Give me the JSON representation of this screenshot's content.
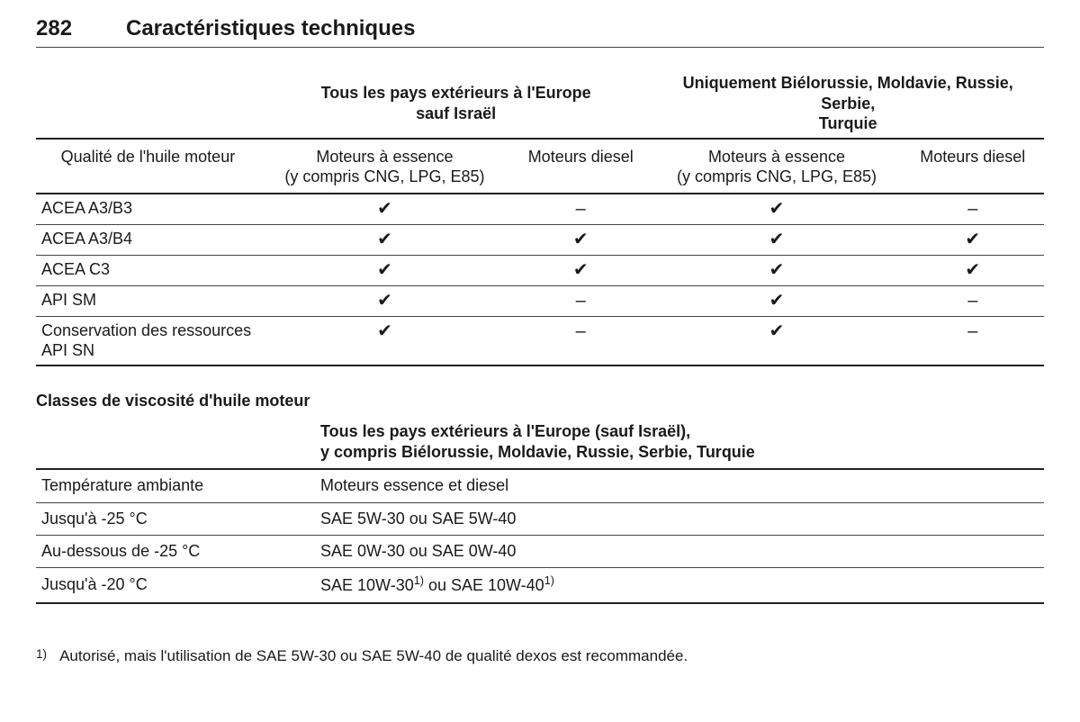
{
  "page": {
    "number": "282",
    "chapter": "Caractéristiques techniques"
  },
  "check": "✔",
  "dash": "–",
  "table1": {
    "group1_title_l1": "Tous les pays extérieurs à l'Europe",
    "group1_title_l2": "sauf Israël",
    "group2_title_l1": "Uniquement Biélorussie, Moldavie, Russie, Serbie,",
    "group2_title_l2": "Turquie",
    "quality_label": "Qualité de l'huile moteur",
    "petrol_l1": "Moteurs à essence",
    "petrol_l2": "(y compris CNG, LPG, E85)",
    "diesel": "Moteurs diesel",
    "rows": [
      {
        "label": "ACEA A3/B3",
        "g1p": "✔",
        "g1d": "–",
        "g2p": "✔",
        "g2d": "–"
      },
      {
        "label": "ACEA A3/B4",
        "g1p": "✔",
        "g1d": "✔",
        "g2p": "✔",
        "g2d": "✔"
      },
      {
        "label": "ACEA C3",
        "g1p": "✔",
        "g1d": "✔",
        "g2p": "✔",
        "g2d": "✔"
      },
      {
        "label": "API SM",
        "g1p": "✔",
        "g1d": "–",
        "g2p": "✔",
        "g2d": "–"
      },
      {
        "label": "Conservation des ressources API SN",
        "g1p": "✔",
        "g1d": "–",
        "g2p": "✔",
        "g2d": "–"
      }
    ]
  },
  "table2": {
    "section_title": "Classes de viscosité d'huile moteur",
    "group_title_l1": "Tous les pays extérieurs à l'Europe (sauf Israël),",
    "group_title_l2": "y compris Biélorussie, Moldavie, Russie, Serbie, Turquie",
    "row_label": "Température ambiante",
    "col_label": "Moteurs essence et diesel",
    "rows": [
      {
        "label": "Jusqu'à -25 °C",
        "value_plain": "SAE 5W-30 ou SAE 5W-40"
      },
      {
        "label": "Au-dessous de -25 °C",
        "value_plain": "SAE 0W-30 ou SAE 0W-40"
      },
      {
        "label": "Jusqu'à -20 °C",
        "value_a": "SAE 10W-30",
        "sup": "1)",
        "value_mid": " ou SAE 10W-40"
      }
    ]
  },
  "footnote": {
    "mark": "1)",
    "text": "Autorisé, mais l'utilisation de SAE 5W-30 ou SAE 5W-40 de qualité dexos est recommandée."
  },
  "style": {
    "font_family": "Arial, Helvetica, sans-serif",
    "text_color": "#1a1a1a",
    "rule_color": "#444444",
    "heavy_rule_color": "#222222",
    "background": "#ffffff",
    "header_fontsize_pt": 18,
    "body_fontsize_pt": 13
  }
}
